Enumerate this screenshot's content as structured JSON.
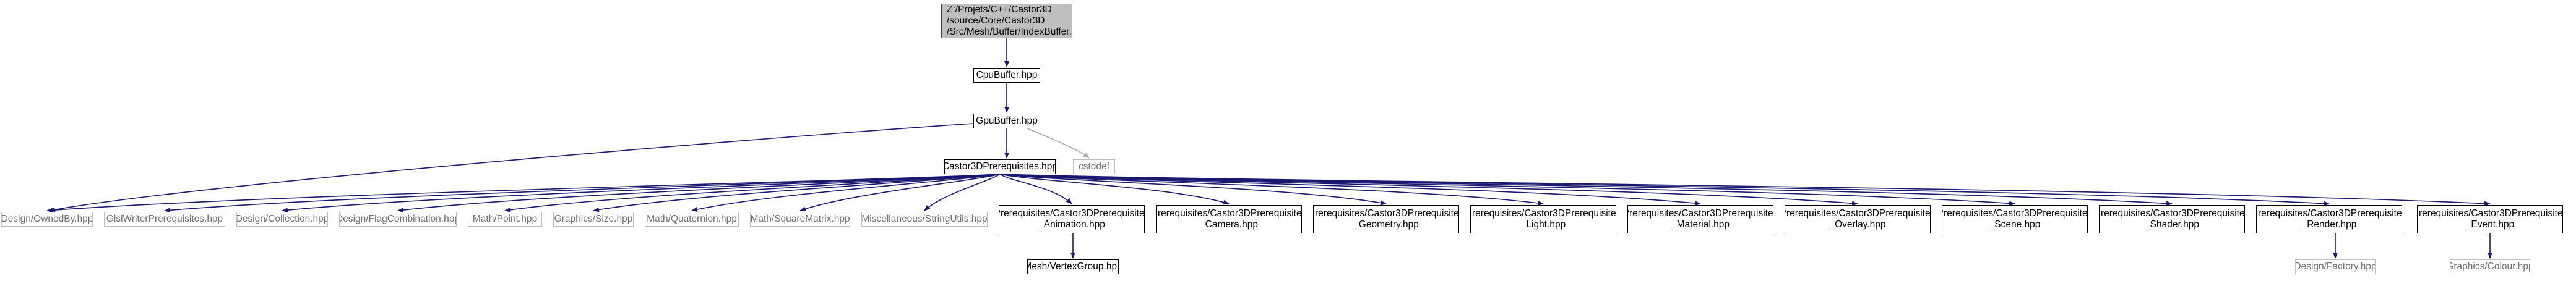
{
  "colors": {
    "edge": "#191970",
    "ext_edge": "#a9a9a9",
    "node_border": "#000000",
    "root_fill": "#bfbfbf",
    "ext_border": "#bfbfbf"
  },
  "nodes": {
    "root": {
      "label": "Z:/Projets/C++/Castor3D\n/source/Core/Castor3D\n/Src/Mesh/Buffer/IndexBuffer.hpp"
    },
    "cpubuffer": {
      "label": "CpuBuffer.hpp"
    },
    "gpubuffer": {
      "label": "GpuBuffer.hpp"
    },
    "cstddef": {
      "label": "cstddef"
    },
    "prereq": {
      "label": "Castor3DPrerequisites.hpp"
    },
    "ownedby": {
      "label": "Design/OwnedBy.hpp"
    },
    "glslwriter": {
      "label": "GlslWriterPrerequisites.hpp"
    },
    "collection": {
      "label": "Design/Collection.hpp"
    },
    "flagcomb": {
      "label": "Design/FlagCombination.hpp"
    },
    "point": {
      "label": "Math/Point.hpp"
    },
    "size": {
      "label": "Graphics/Size.hpp"
    },
    "quaternion": {
      "label": "Math/Quaternion.hpp"
    },
    "squarematrix": {
      "label": "Math/SquareMatrix.hpp"
    },
    "stringutils": {
      "label": "Miscellaneous/StringUtils.hpp"
    },
    "animation": {
      "label": "Prerequisites/Castor3DPrerequisites\n_Animation.hpp"
    },
    "camera": {
      "label": "Prerequisites/Castor3DPrerequisites\n_Camera.hpp"
    },
    "geometry": {
      "label": "Prerequisites/Castor3DPrerequisites\n_Geometry.hpp"
    },
    "light": {
      "label": "Prerequisites/Castor3DPrerequisites\n_Light.hpp"
    },
    "material": {
      "label": "Prerequisites/Castor3DPrerequisites\n_Material.hpp"
    },
    "overlay": {
      "label": "Prerequisites/Castor3DPrerequisites\n_Overlay.hpp"
    },
    "scene": {
      "label": "Prerequisites/Castor3DPrerequisites\n_Scene.hpp"
    },
    "shader": {
      "label": "Prerequisites/Castor3DPrerequisites\n_Shader.hpp"
    },
    "render": {
      "label": "Prerequisites/Castor3DPrerequisites\n_Render.hpp"
    },
    "event": {
      "label": "Prerequisites/Castor3DPrerequisites\n_Event.hpp"
    },
    "vertexgroup": {
      "label": "Mesh/VertexGroup.hpp"
    },
    "factory": {
      "label": "Design/Factory.hpp"
    },
    "colour": {
      "label": "Graphics/Colour.hpp"
    }
  }
}
